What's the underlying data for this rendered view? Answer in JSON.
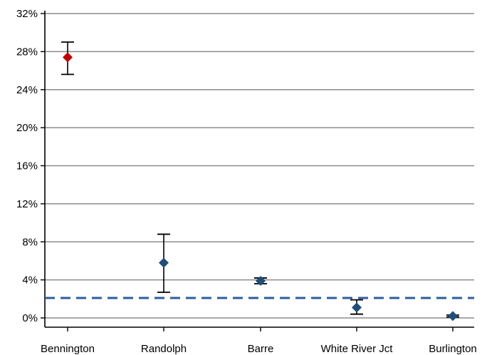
{
  "chart_data": {
    "type": "scatter",
    "title": "",
    "xlabel": "",
    "ylabel": "",
    "categories": [
      "Bennington",
      "Randolph",
      "Barre",
      "White River Jct",
      "Burlington"
    ],
    "values": [
      27.4,
      5.8,
      3.9,
      1.1,
      0.2
    ],
    "error_low": [
      25.6,
      2.7,
      3.6,
      0.4,
      0.1
    ],
    "error_high": [
      29.0,
      8.8,
      4.2,
      1.9,
      0.3
    ],
    "highlight_index": 0,
    "reference_line": 2.1,
    "ylim": [
      0,
      32
    ],
    "yticks": [
      0,
      4,
      8,
      12,
      16,
      20,
      24,
      28,
      32
    ],
    "ytick_labels": [
      "0%",
      "4%",
      "8%",
      "12%",
      "16%",
      "20%",
      "24%",
      "28%",
      "32%"
    ],
    "grid": true,
    "legend": "none",
    "colors": {
      "marker": "#1f4e79",
      "highlight": "#c00000",
      "reference_line": "#2e5d9a",
      "grid": "#8c8c8c",
      "axis": "#000000",
      "error_bar": "#000000"
    }
  }
}
